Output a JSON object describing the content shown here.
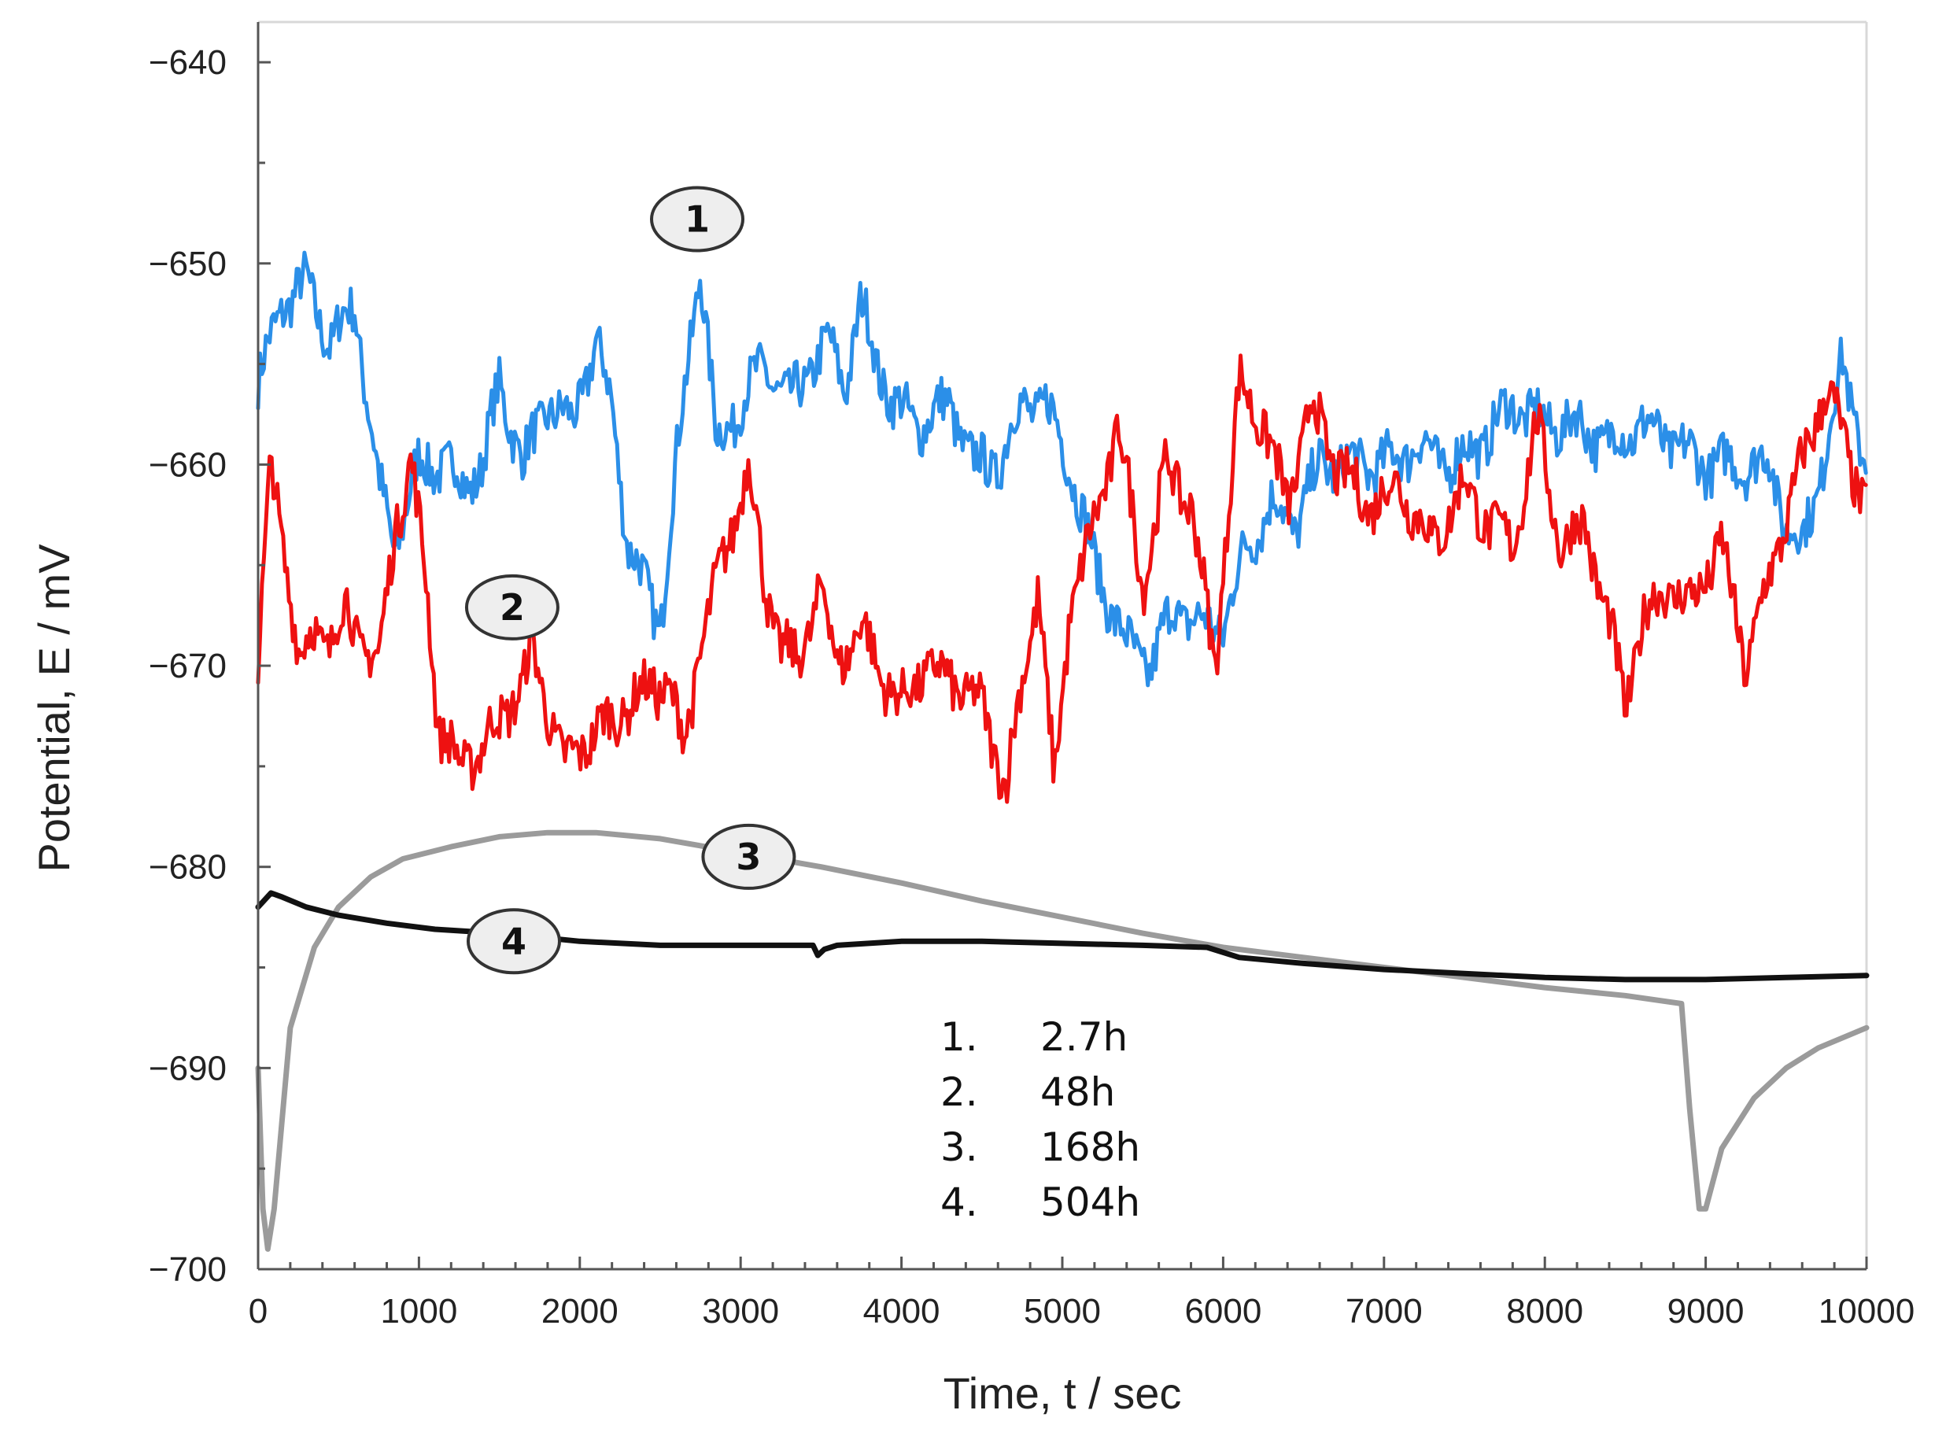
{
  "chart_data": {
    "type": "line",
    "xlabel": "Time, t / sec",
    "ylabel": "Potential, E / mV",
    "xlim": [
      0,
      10000
    ],
    "ylim": [
      -700,
      -638
    ],
    "x_ticks": [
      0,
      1000,
      2000,
      3000,
      4000,
      5000,
      6000,
      7000,
      8000,
      9000,
      10000
    ],
    "y_ticks": [
      -640,
      -650,
      -660,
      -670,
      -680,
      -690,
      -700
    ],
    "grid": false,
    "series": [
      {
        "marker": "1",
        "color": "#2b8fe8",
        "style": "noisy",
        "points": [
          [
            0,
            -656
          ],
          [
            150,
            -652
          ],
          [
            300,
            -651
          ],
          [
            450,
            -654
          ],
          [
            600,
            -652
          ],
          [
            750,
            -661
          ],
          [
            850,
            -664
          ],
          [
            1000,
            -660
          ],
          [
            1150,
            -660
          ],
          [
            1300,
            -661
          ],
          [
            1400,
            -660
          ],
          [
            1500,
            -656
          ],
          [
            1650,
            -660
          ],
          [
            1800,
            -657
          ],
          [
            1950,
            -658
          ],
          [
            2100,
            -654
          ],
          [
            2200,
            -657
          ],
          [
            2300,
            -664
          ],
          [
            2400,
            -666
          ],
          [
            2500,
            -668
          ],
          [
            2600,
            -660
          ],
          [
            2700,
            -653
          ],
          [
            2750,
            -650
          ],
          [
            2850,
            -659
          ],
          [
            3000,
            -657
          ],
          [
            3150,
            -655
          ],
          [
            3300,
            -657
          ],
          [
            3450,
            -655
          ],
          [
            3550,
            -654
          ],
          [
            3650,
            -656
          ],
          [
            3750,
            -652
          ],
          [
            3850,
            -655
          ],
          [
            3950,
            -657
          ],
          [
            4100,
            -658
          ],
          [
            4300,
            -657
          ],
          [
            4450,
            -660
          ],
          [
            4600,
            -660
          ],
          [
            4750,
            -657
          ],
          [
            4900,
            -657
          ],
          [
            5050,
            -660
          ],
          [
            5200,
            -665
          ],
          [
            5400,
            -669
          ],
          [
            5550,
            -670
          ],
          [
            5700,
            -667
          ],
          [
            5850,
            -668
          ],
          [
            6000,
            -668
          ],
          [
            6150,
            -664
          ],
          [
            6300,
            -662
          ],
          [
            6450,
            -663
          ],
          [
            6600,
            -660
          ],
          [
            6800,
            -660
          ],
          [
            7000,
            -660
          ],
          [
            7200,
            -659
          ],
          [
            7400,
            -660
          ],
          [
            7600,
            -659
          ],
          [
            7800,
            -657
          ],
          [
            8000,
            -658
          ],
          [
            8200,
            -658
          ],
          [
            8400,
            -659
          ],
          [
            8600,
            -658
          ],
          [
            8800,
            -659
          ],
          [
            9000,
            -660
          ],
          [
            9200,
            -660
          ],
          [
            9400,
            -660
          ],
          [
            9500,
            -663
          ],
          [
            9600,
            -664
          ],
          [
            9700,
            -661
          ],
          [
            9850,
            -655
          ],
          [
            10000,
            -660
          ]
        ]
      },
      {
        "marker": "2",
        "color": "#ee1111",
        "style": "noisy",
        "points": [
          [
            0,
            -670
          ],
          [
            80,
            -660
          ],
          [
            160,
            -664
          ],
          [
            260,
            -670
          ],
          [
            350,
            -668
          ],
          [
            450,
            -669
          ],
          [
            550,
            -667
          ],
          [
            650,
            -669
          ],
          [
            750,
            -670
          ],
          [
            850,
            -663
          ],
          [
            950,
            -660
          ],
          [
            1050,
            -666
          ],
          [
            1120,
            -673
          ],
          [
            1250,
            -675
          ],
          [
            1400,
            -674
          ],
          [
            1550,
            -672
          ],
          [
            1650,
            -671
          ],
          [
            1700,
            -669
          ],
          [
            1800,
            -672
          ],
          [
            1900,
            -675
          ],
          [
            2000,
            -674
          ],
          [
            2150,
            -673
          ],
          [
            2300,
            -672
          ],
          [
            2450,
            -671
          ],
          [
            2550,
            -671
          ],
          [
            2650,
            -674
          ],
          [
            2750,
            -669
          ],
          [
            2850,
            -666
          ],
          [
            2950,
            -663
          ],
          [
            3050,
            -660
          ],
          [
            3150,
            -666
          ],
          [
            3250,
            -669
          ],
          [
            3350,
            -670
          ],
          [
            3500,
            -666
          ],
          [
            3600,
            -670
          ],
          [
            3750,
            -668
          ],
          [
            3850,
            -670
          ],
          [
            4000,
            -672
          ],
          [
            4150,
            -670
          ],
          [
            4350,
            -671
          ],
          [
            4500,
            -672
          ],
          [
            4650,
            -676
          ],
          [
            4750,
            -671
          ],
          [
            4850,
            -666
          ],
          [
            4950,
            -676
          ],
          [
            5050,
            -667
          ],
          [
            5200,
            -663
          ],
          [
            5350,
            -658
          ],
          [
            5500,
            -666
          ],
          [
            5650,
            -660
          ],
          [
            5800,
            -662
          ],
          [
            5950,
            -670
          ],
          [
            6100,
            -656
          ],
          [
            6250,
            -658
          ],
          [
            6400,
            -662
          ],
          [
            6550,
            -657
          ],
          [
            6700,
            -660
          ],
          [
            6900,
            -662
          ],
          [
            7100,
            -661
          ],
          [
            7300,
            -664
          ],
          [
            7500,
            -661
          ],
          [
            7650,
            -663
          ],
          [
            7800,
            -664
          ],
          [
            7950,
            -658
          ],
          [
            8100,
            -664
          ],
          [
            8250,
            -663
          ],
          [
            8400,
            -668
          ],
          [
            8500,
            -672
          ],
          [
            8600,
            -668
          ],
          [
            8750,
            -666
          ],
          [
            8900,
            -667
          ],
          [
            9100,
            -664
          ],
          [
            9250,
            -670
          ],
          [
            9350,
            -667
          ],
          [
            9450,
            -664
          ],
          [
            9600,
            -660
          ],
          [
            9750,
            -656
          ],
          [
            9900,
            -660
          ],
          [
            10000,
            -662
          ]
        ]
      },
      {
        "marker": "3",
        "color": "#9b9b9b",
        "style": "smooth",
        "points": [
          [
            0,
            -690
          ],
          [
            30,
            -697
          ],
          [
            60,
            -699
          ],
          [
            100,
            -697
          ],
          [
            200,
            -688
          ],
          [
            350,
            -684
          ],
          [
            500,
            -682
          ],
          [
            700,
            -680.5
          ],
          [
            900,
            -679.6
          ],
          [
            1200,
            -679
          ],
          [
            1500,
            -678.5
          ],
          [
            1800,
            -678.3
          ],
          [
            2100,
            -678.3
          ],
          [
            2500,
            -678.6
          ],
          [
            3000,
            -679.3
          ],
          [
            3500,
            -680
          ],
          [
            4000,
            -680.8
          ],
          [
            4500,
            -681.7
          ],
          [
            5000,
            -682.5
          ],
          [
            5500,
            -683.3
          ],
          [
            6000,
            -684
          ],
          [
            6500,
            -684.5
          ],
          [
            7000,
            -685
          ],
          [
            7500,
            -685.5
          ],
          [
            8000,
            -686
          ],
          [
            8500,
            -686.4
          ],
          [
            8850,
            -686.8
          ],
          [
            8900,
            -692
          ],
          [
            8960,
            -697
          ],
          [
            9000,
            -697
          ],
          [
            9100,
            -694
          ],
          [
            9300,
            -691.5
          ],
          [
            9500,
            -690
          ],
          [
            9700,
            -689
          ],
          [
            10000,
            -688
          ]
        ]
      },
      {
        "marker": "4",
        "color": "#111111",
        "style": "smooth",
        "points": [
          [
            0,
            -682
          ],
          [
            80,
            -681.3
          ],
          [
            150,
            -681.5
          ],
          [
            300,
            -682
          ],
          [
            500,
            -682.4
          ],
          [
            800,
            -682.8
          ],
          [
            1100,
            -683.1
          ],
          [
            1500,
            -683.3
          ],
          [
            2000,
            -683.7
          ],
          [
            2500,
            -683.9
          ],
          [
            3000,
            -683.9
          ],
          [
            3450,
            -683.9
          ],
          [
            3480,
            -684.4
          ],
          [
            3520,
            -684.1
          ],
          [
            3600,
            -683.9
          ],
          [
            4000,
            -683.7
          ],
          [
            4500,
            -683.7
          ],
          [
            5000,
            -683.8
          ],
          [
            5500,
            -683.9
          ],
          [
            5900,
            -684
          ],
          [
            6100,
            -684.5
          ],
          [
            6500,
            -684.8
          ],
          [
            7000,
            -685.1
          ],
          [
            7500,
            -685.3
          ],
          [
            8000,
            -685.5
          ],
          [
            8500,
            -685.6
          ],
          [
            9000,
            -685.6
          ],
          [
            9500,
            -685.5
          ],
          [
            10000,
            -685.4
          ]
        ]
      }
    ],
    "markers": [
      {
        "label": "1",
        "x": 2730,
        "y": -647.8
      },
      {
        "label": "2",
        "x": 1580,
        "y": -667.1
      },
      {
        "label": "3",
        "x": 3050,
        "y": -679.5
      },
      {
        "label": "4",
        "x": 1590,
        "y": -683.7
      }
    ],
    "legend": {
      "placement": "bottom-center",
      "entries": [
        {
          "number": "1.",
          "label": "2.7h"
        },
        {
          "number": "2.",
          "label": "48h"
        },
        {
          "number": "3.",
          "label": "168h"
        },
        {
          "number": "4.",
          "label": "504h"
        }
      ]
    }
  }
}
